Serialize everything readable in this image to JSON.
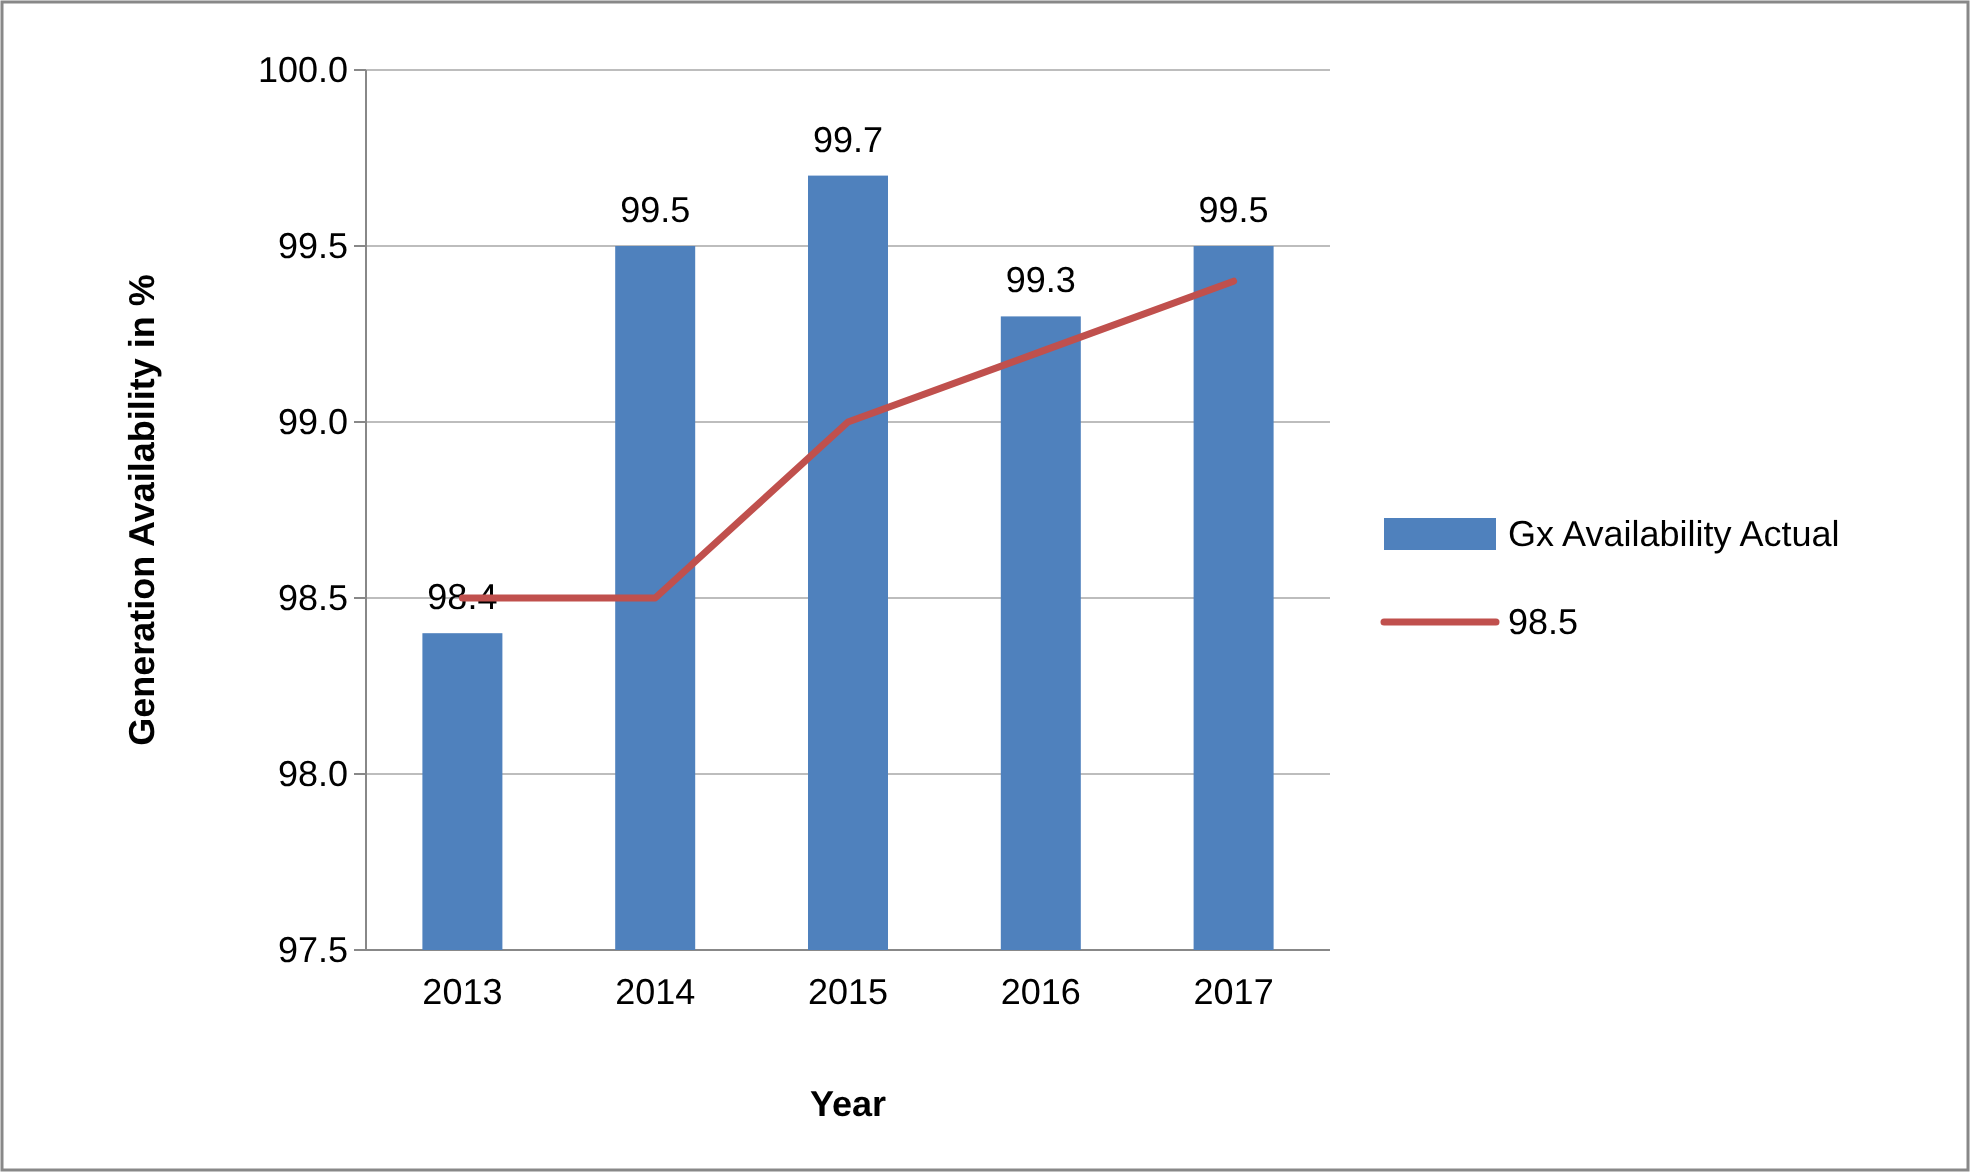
{
  "chart_data": {
    "type": "bar",
    "xlabel": "Year",
    "ylabel": "Generation Availability in %",
    "categories": [
      "2013",
      "2014",
      "2015",
      "2016",
      "2017"
    ],
    "series": [
      {
        "name": "Gx Availability Actual",
        "color": "#4f81bd",
        "values": [
          98.4,
          99.5,
          99.7,
          99.3,
          99.5
        ],
        "value_labels": [
          "98.4",
          "99.5",
          "99.7",
          "99.3",
          "99.5"
        ]
      },
      {
        "name": "98.5",
        "type": "line",
        "color": "#c0504d",
        "values": [
          98.5,
          98.5,
          99.0,
          99.2,
          99.4
        ]
      }
    ],
    "ylim": [
      97.5,
      100
    ],
    "yticks": [
      {
        "value": 97.5,
        "label": "97.5"
      },
      {
        "value": 98,
        "label": "98.0"
      },
      {
        "value": 98.5,
        "label": "98.5"
      },
      {
        "value": 99,
        "label": "99.0"
      },
      {
        "value": 99.5,
        "label": "99.5"
      },
      {
        "value": 100,
        "label": "100.0"
      }
    ],
    "grid": "y",
    "legend": "right",
    "marker": "none",
    "line_style": "solid"
  }
}
